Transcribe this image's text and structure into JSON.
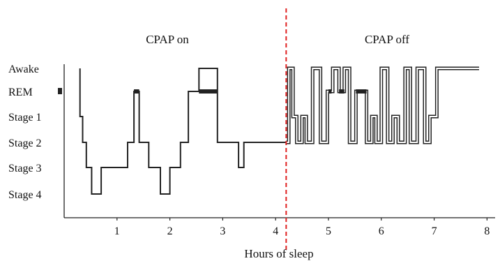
{
  "chart_data": {
    "type": "line",
    "xlabel": "Hours of sleep",
    "xlim": [
      0,
      8
    ],
    "x_ticks": [
      "1",
      "2",
      "3",
      "4",
      "5",
      "6",
      "7",
      "8"
    ],
    "y_categories": [
      "Awake",
      "REM",
      "Stage 1",
      "Stage 2",
      "Stage 3",
      "Stage 4"
    ],
    "sections": [
      {
        "label": "CPAP on",
        "x_from": 0,
        "x_to": 4.2
      },
      {
        "label": "CPAP off",
        "x_from": 4.2,
        "x_to": 8
      }
    ],
    "divider_x": 4.2,
    "divider_color": "#e02020",
    "line_color": "#222222",
    "series": [
      {
        "x": [
          0.3,
          0.3,
          0.35,
          0.35,
          0.42,
          0.42,
          0.52,
          0.52,
          0.7,
          0.7,
          1.2,
          1.2,
          1.32,
          1.32,
          1.42,
          1.42,
          1.6,
          1.6,
          1.82,
          1.82,
          2.0,
          2.0,
          2.2,
          2.2,
          2.35,
          2.35,
          2.55,
          2.55,
          2.9,
          2.9,
          3.3,
          3.3,
          3.4,
          3.4,
          3.5,
          3.5,
          3.9,
          3.9,
          4.2,
          4.2
        ],
        "y": [
          "Awake",
          "Stage 1",
          "Stage 1",
          "Stage 2",
          "Stage 2",
          "Stage 3",
          "Stage 3",
          "Stage 4",
          "Stage 4",
          "Stage 3",
          "Stage 3",
          "Stage 2",
          "Stage 2",
          "REM",
          "REM",
          "Stage 2",
          "Stage 2",
          "Stage 3",
          "Stage 3",
          "Stage 4",
          "Stage 4",
          "Stage 3",
          "Stage 3",
          "Stage 2",
          "Stage 2",
          "REM",
          "REM",
          "Awake",
          "Awake",
          "Stage 2",
          "Stage 2",
          "Stage 3",
          "Stage 3",
          "Stage 2",
          "Stage 2",
          "Stage 2",
          "Stage 2",
          "Stage 2",
          "Stage 2",
          "Stage 2"
        ]
      },
      {
        "x": [
          4.2,
          4.25,
          4.25,
          4.33,
          4.33,
          4.4,
          4.4,
          4.5,
          4.5,
          4.58,
          4.58,
          4.7,
          4.7,
          4.85,
          4.85,
          4.98,
          4.98,
          5.08,
          5.08,
          5.2,
          5.2,
          5.3,
          5.3,
          5.4,
          5.4,
          5.52,
          5.52,
          5.72,
          5.72,
          5.82,
          5.82,
          5.9,
          5.9,
          6.0,
          6.0,
          6.12,
          6.12,
          6.22,
          6.22,
          6.32,
          6.32,
          6.45,
          6.45,
          6.55,
          6.55,
          6.68,
          6.68,
          6.82,
          6.82,
          6.92,
          6.92,
          7.05,
          7.05,
          7.12,
          7.12,
          7.25,
          7.25,
          7.85
        ],
        "y": [
          "Stage 2",
          "Stage 2",
          "Awake",
          "Awake",
          "Stage 1",
          "Stage 1",
          "Stage 2",
          "Stage 2",
          "Stage 1",
          "Stage 1",
          "Stage 2",
          "Stage 2",
          "Awake",
          "Awake",
          "Stage 2",
          "Stage 2",
          "REM",
          "REM",
          "Awake",
          "Awake",
          "REM",
          "REM",
          "Awake",
          "Awake",
          "Stage 2",
          "Stage 2",
          "REM",
          "REM",
          "Stage 2",
          "Stage 2",
          "Stage 1",
          "Stage 1",
          "Stage 2",
          "Stage 2",
          "Awake",
          "Awake",
          "Stage 2",
          "Stage 2",
          "Stage 1",
          "Stage 1",
          "Stage 2",
          "Stage 2",
          "Awake",
          "Awake",
          "Stage 2",
          "Stage 2",
          "Awake",
          "Awake",
          "Stage 2",
          "Stage 2",
          "Stage 1",
          "Stage 1",
          "Awake",
          "Awake",
          "Awake",
          "Awake",
          "Awake",
          "Awake"
        ]
      }
    ],
    "grid": false
  }
}
